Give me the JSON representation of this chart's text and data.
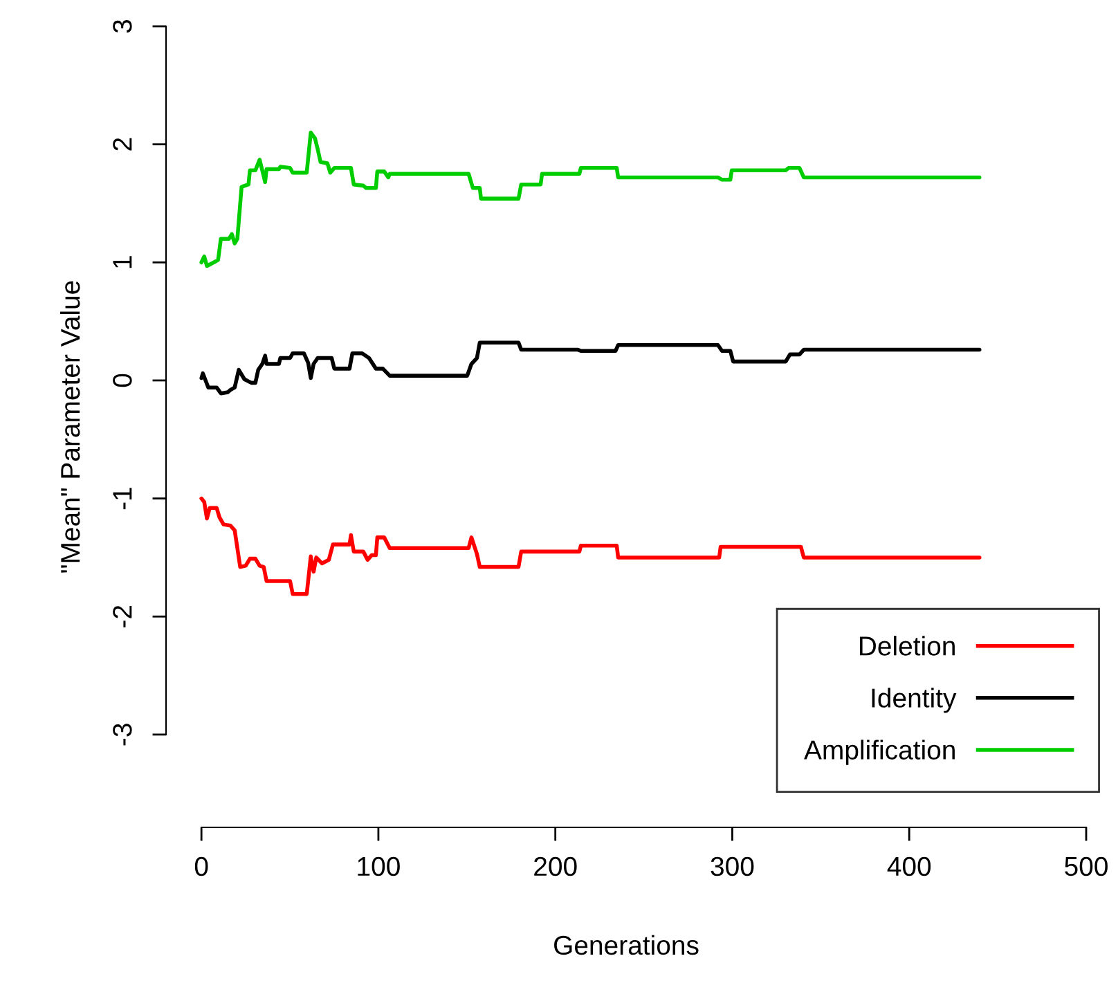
{
  "chart_data": {
    "type": "line",
    "xlabel": "Generations",
    "ylabel": "\"Mean\" Parameter Value",
    "xlim": [
      -20,
      500
    ],
    "ylim": [
      -3.786,
      3
    ],
    "xticks": [
      0,
      100,
      200,
      300,
      400,
      500
    ],
    "yticks": [
      -3,
      -2,
      -1,
      0,
      1,
      2,
      3
    ],
    "grid": false,
    "legend": "bottom right",
    "line_style": "solid",
    "marker": "none",
    "series": [
      {
        "name": "Deletion",
        "color": "#ff0000",
        "x": [
          0,
          1.6,
          3.1,
          4.7,
          8.6,
          10.2,
          12.5,
          16.4,
          18.8,
          21.9,
          25,
          27.4,
          30.5,
          32.9,
          35.2,
          36.8,
          50.1,
          51.6,
          59.5,
          60.3,
          61.8,
          63.4,
          64.9,
          68.1,
          72,
          74.3,
          83.7,
          84.5,
          86.1,
          91.5,
          93.9,
          96.2,
          98.6,
          99.4,
          103.3,
          106.4,
          151,
          152.6,
          155.7,
          157.3,
          179.2,
          180.7,
          213.6,
          214.4,
          234.7,
          235.5,
          292.6,
          293.4,
          338.8,
          340.4,
          439.7
        ],
        "values": [
          -1.0,
          -1.03,
          -1.17,
          -1.08,
          -1.08,
          -1.16,
          -1.22,
          -1.23,
          -1.27,
          -1.58,
          -1.57,
          -1.51,
          -1.51,
          -1.57,
          -1.58,
          -1.7,
          -1.7,
          -1.81,
          -1.81,
          -1.7,
          -1.49,
          -1.62,
          -1.5,
          -1.55,
          -1.52,
          -1.39,
          -1.39,
          -1.31,
          -1.45,
          -1.45,
          -1.52,
          -1.48,
          -1.48,
          -1.33,
          -1.33,
          -1.42,
          -1.42,
          -1.33,
          -1.47,
          -1.58,
          -1.58,
          -1.45,
          -1.45,
          -1.4,
          -1.4,
          -1.5,
          -1.5,
          -1.41,
          -1.41,
          -1.5,
          -1.5
        ]
      },
      {
        "name": "Identity",
        "color": "#000000",
        "x": [
          0,
          0.8,
          3.9,
          8.6,
          11,
          14.9,
          16.4,
          18.8,
          21.1,
          24.3,
          28.2,
          30.5,
          32.1,
          34.4,
          36,
          36.8,
          43.8,
          44.6,
          50.1,
          51.6,
          57.9,
          60.3,
          61.8,
          63.4,
          65.7,
          73.6,
          75.1,
          83.7,
          85.3,
          90.8,
          94.7,
          98.6,
          102.5,
          106.4,
          150.2,
          152.6,
          155.7,
          157.3,
          179.2,
          180.7,
          212.8,
          214.4,
          234,
          235.5,
          291.9,
          294.2,
          298.9,
          300.5,
          330.2,
          332.6,
          338,
          340.4,
          439.7
        ],
        "values": [
          0.02,
          0.06,
          -0.06,
          -0.06,
          -0.11,
          -0.1,
          -0.08,
          -0.06,
          0.09,
          0.01,
          -0.02,
          -0.02,
          0.09,
          0.14,
          0.21,
          0.14,
          0.14,
          0.19,
          0.19,
          0.23,
          0.23,
          0.15,
          0.02,
          0.14,
          0.19,
          0.19,
          0.1,
          0.1,
          0.23,
          0.23,
          0.19,
          0.1,
          0.1,
          0.04,
          0.04,
          0.14,
          0.19,
          0.32,
          0.32,
          0.26,
          0.26,
          0.25,
          0.25,
          0.3,
          0.3,
          0.25,
          0.25,
          0.16,
          0.16,
          0.22,
          0.22,
          0.26,
          0.26
        ]
      },
      {
        "name": "Amplification",
        "color": "#00cd00",
        "x": [
          0,
          1.6,
          3.1,
          7,
          9.4,
          11,
          15.6,
          17.2,
          18.8,
          20.3,
          22.7,
          26.6,
          27.4,
          30.5,
          32.9,
          36,
          36.8,
          43.8,
          44.6,
          50.1,
          51.6,
          59.5,
          61.8,
          64.2,
          65.7,
          67.3,
          71.2,
          72.8,
          75.1,
          84.5,
          86.1,
          91.5,
          93.1,
          98.6,
          99.4,
          103.3,
          105.6,
          106.4,
          151,
          153.4,
          157.3,
          158,
          179.2,
          180.7,
          191.7,
          192.5,
          213.6,
          214.4,
          234.7,
          235.5,
          291.9,
          294.2,
          298.9,
          299.7,
          330.2,
          331.8,
          338,
          340.4,
          439.7
        ],
        "values": [
          1.0,
          1.05,
          0.97,
          1.0,
          1.02,
          1.2,
          1.2,
          1.24,
          1.16,
          1.2,
          1.64,
          1.66,
          1.78,
          1.78,
          1.87,
          1.68,
          1.79,
          1.79,
          1.81,
          1.8,
          1.76,
          1.76,
          2.1,
          2.05,
          1.96,
          1.85,
          1.84,
          1.76,
          1.8,
          1.8,
          1.66,
          1.65,
          1.63,
          1.63,
          1.77,
          1.77,
          1.72,
          1.75,
          1.75,
          1.63,
          1.63,
          1.54,
          1.54,
          1.66,
          1.66,
          1.75,
          1.75,
          1.8,
          1.8,
          1.72,
          1.72,
          1.7,
          1.7,
          1.78,
          1.78,
          1.8,
          1.8,
          1.72,
          1.72
        ]
      }
    ]
  }
}
